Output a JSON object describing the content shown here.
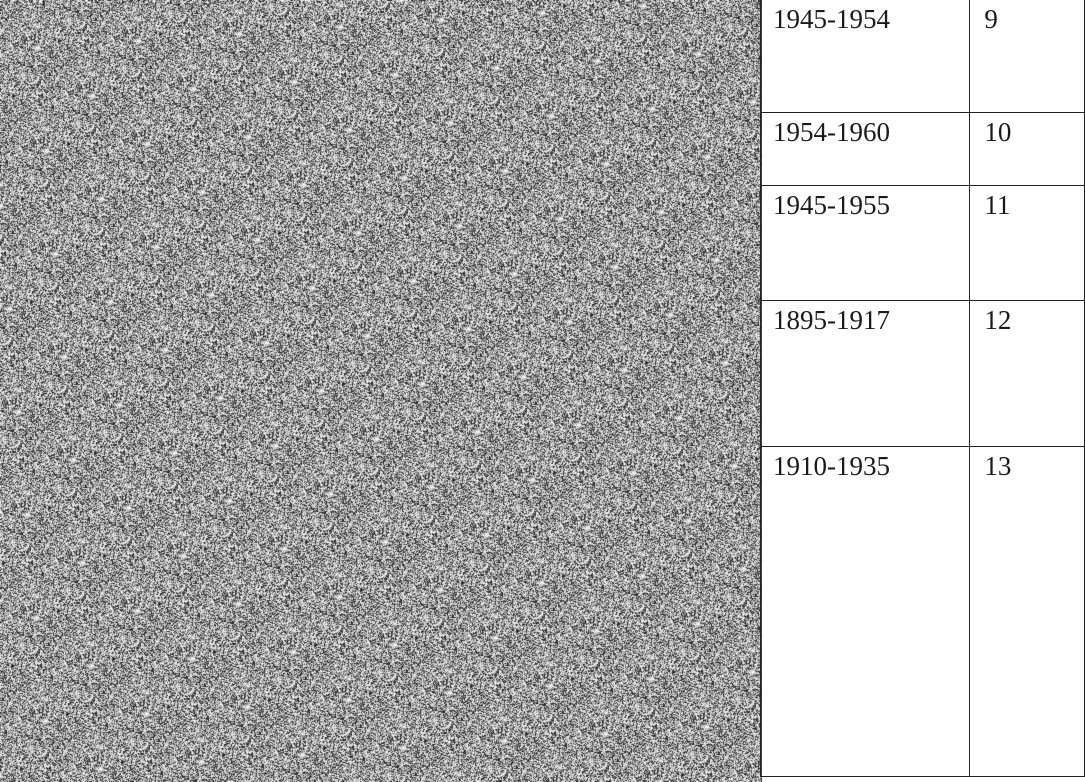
{
  "table": {
    "rows": [
      {
        "period": "1945-1954",
        "number": "9"
      },
      {
        "period": "1954-1960",
        "number": "10"
      },
      {
        "period": "1945-1955",
        "number": "11"
      },
      {
        "period": "1895-1917",
        "number": "12"
      },
      {
        "period": "1910-1935",
        "number": "13"
      }
    ]
  }
}
